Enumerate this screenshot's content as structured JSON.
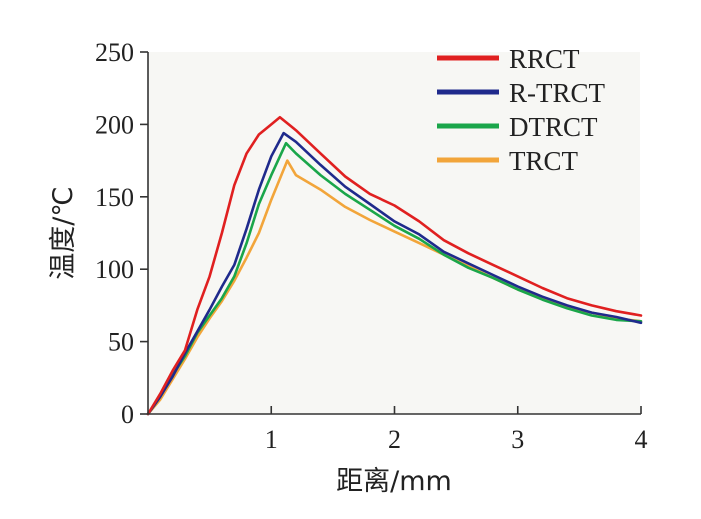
{
  "chart_data": {
    "type": "line",
    "title": "",
    "xlabel": "距离/mm",
    "ylabel": "温度/℃",
    "xlim": [
      0,
      4
    ],
    "ylim": [
      0,
      250
    ],
    "xticks": [
      1,
      2,
      3,
      4
    ],
    "xtick_labels": [
      "1",
      "2",
      "3",
      "4"
    ],
    "yticks": [
      0,
      50,
      100,
      150,
      200,
      250
    ],
    "ytick_labels": [
      "0",
      "50",
      "100",
      "150",
      "200",
      "250"
    ],
    "grid": false,
    "legend_position": "top-right",
    "series": [
      {
        "name": "RRCT",
        "color": "#e02020",
        "x": [
          0,
          0.1,
          0.2,
          0.3,
          0.4,
          0.5,
          0.6,
          0.7,
          0.8,
          0.9,
          1.0,
          1.07,
          1.2,
          1.4,
          1.6,
          1.8,
          2.0,
          2.2,
          2.4,
          2.6,
          2.8,
          3.0,
          3.2,
          3.4,
          3.6,
          3.8,
          4.0
        ],
        "y": [
          0,
          14,
          30,
          44,
          72,
          95,
          125,
          158,
          180,
          193,
          200,
          205,
          196,
          180,
          164,
          152,
          144,
          133,
          120,
          111,
          103,
          95,
          87,
          80,
          75,
          71,
          68
        ]
      },
      {
        "name": "R-TRCT",
        "color": "#1f2a8c",
        "x": [
          0,
          0.1,
          0.2,
          0.3,
          0.4,
          0.5,
          0.6,
          0.7,
          0.8,
          0.9,
          1.0,
          1.1,
          1.2,
          1.4,
          1.6,
          1.8,
          2.0,
          2.2,
          2.4,
          2.6,
          2.8,
          3.0,
          3.2,
          3.4,
          3.6,
          3.8,
          4.0
        ],
        "y": [
          0,
          12,
          26,
          42,
          57,
          72,
          88,
          103,
          128,
          155,
          178,
          194,
          188,
          172,
          157,
          145,
          133,
          124,
          112,
          104,
          96,
          88,
          81,
          75,
          70,
          67,
          63
        ]
      },
      {
        "name": "DTRCT",
        "color": "#1aa64a",
        "x": [
          0,
          0.1,
          0.2,
          0.3,
          0.4,
          0.5,
          0.6,
          0.7,
          0.8,
          0.9,
          1.0,
          1.12,
          1.2,
          1.4,
          1.6,
          1.8,
          2.0,
          2.2,
          2.4,
          2.6,
          2.8,
          3.0,
          3.2,
          3.4,
          3.6,
          3.8,
          4.0
        ],
        "y": [
          0,
          12,
          27,
          40,
          56,
          68,
          80,
          95,
          118,
          145,
          165,
          187,
          180,
          165,
          152,
          141,
          130,
          121,
          110,
          101,
          94,
          86,
          79,
          73,
          68,
          65,
          64
        ]
      },
      {
        "name": "TRCT",
        "color": "#f2a53a",
        "x": [
          0,
          0.1,
          0.2,
          0.3,
          0.4,
          0.5,
          0.6,
          0.7,
          0.8,
          0.9,
          1.0,
          1.13,
          1.2,
          1.4,
          1.6,
          1.8,
          2.0,
          2.2,
          2.4,
          2.6,
          2.8,
          3.0,
          3.2,
          3.4,
          3.6,
          3.8,
          4.0
        ],
        "y": [
          0,
          10,
          24,
          38,
          53,
          66,
          78,
          92,
          108,
          125,
          148,
          175,
          165,
          155,
          143,
          134,
          126,
          118,
          110,
          102,
          94,
          86,
          80,
          74,
          70,
          66,
          64
        ]
      }
    ]
  }
}
